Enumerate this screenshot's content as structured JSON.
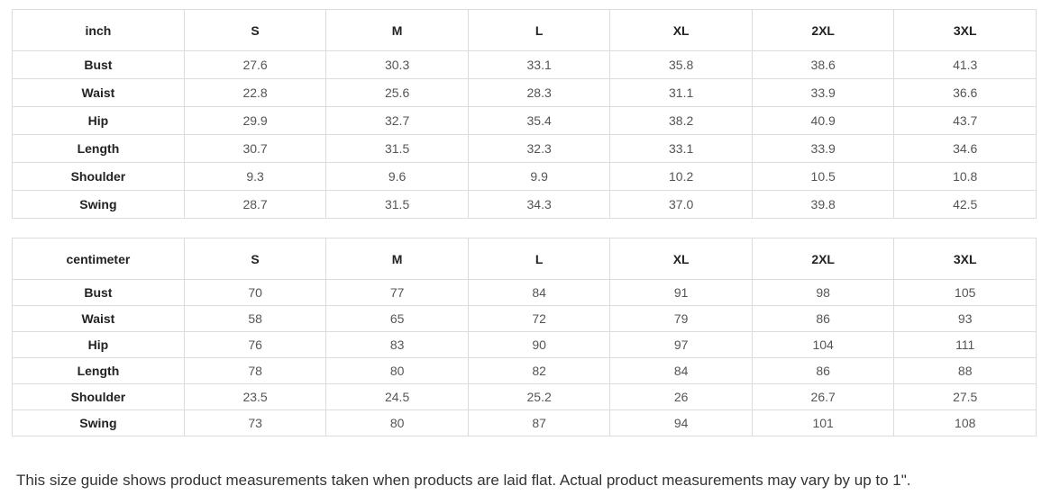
{
  "tables": [
    {
      "unit_label": "inch",
      "sizes": [
        "S",
        "M",
        "L",
        "XL",
        "2XL",
        "3XL"
      ],
      "rows": [
        {
          "label": "Bust",
          "values": [
            "27.6",
            "30.3",
            "33.1",
            "35.8",
            "38.6",
            "41.3"
          ]
        },
        {
          "label": "Waist",
          "values": [
            "22.8",
            "25.6",
            "28.3",
            "31.1",
            "33.9",
            "36.6"
          ]
        },
        {
          "label": "Hip",
          "values": [
            "29.9",
            "32.7",
            "35.4",
            "38.2",
            "40.9",
            "43.7"
          ]
        },
        {
          "label": "Length",
          "values": [
            "30.7",
            "31.5",
            "32.3",
            "33.1",
            "33.9",
            "34.6"
          ]
        },
        {
          "label": "Shoulder",
          "values": [
            "9.3",
            "9.6",
            "9.9",
            "10.2",
            "10.5",
            "10.8"
          ]
        },
        {
          "label": "Swing",
          "values": [
            "28.7",
            "31.5",
            "34.3",
            "37.0",
            "39.8",
            "42.5"
          ]
        }
      ]
    },
    {
      "unit_label": "centimeter",
      "sizes": [
        "S",
        "M",
        "L",
        "XL",
        "2XL",
        "3XL"
      ],
      "rows": [
        {
          "label": "Bust",
          "values": [
            "70",
            "77",
            "84",
            "91",
            "98",
            "105"
          ]
        },
        {
          "label": "Waist",
          "values": [
            "58",
            "65",
            "72",
            "79",
            "86",
            "93"
          ]
        },
        {
          "label": "Hip",
          "values": [
            "76",
            "83",
            "90",
            "97",
            "104",
            "111"
          ]
        },
        {
          "label": "Length",
          "values": [
            "78",
            "80",
            "82",
            "84",
            "86",
            "88"
          ]
        },
        {
          "label": "Shoulder",
          "values": [
            "23.5",
            "24.5",
            "25.2",
            "26",
            "26.7",
            "27.5"
          ]
        },
        {
          "label": "Swing",
          "values": [
            "73",
            "80",
            "87",
            "94",
            "101",
            "108"
          ]
        }
      ]
    }
  ],
  "footer": {
    "note": "This size guide shows product measurements taken when products are laid flat. Actual product measurements may vary by up to 1\"."
  },
  "colors": {
    "border": "#dcdcdc",
    "heading_text": "#222222",
    "value_text": "#555555",
    "note_text": "#333333",
    "background": "#ffffff"
  }
}
